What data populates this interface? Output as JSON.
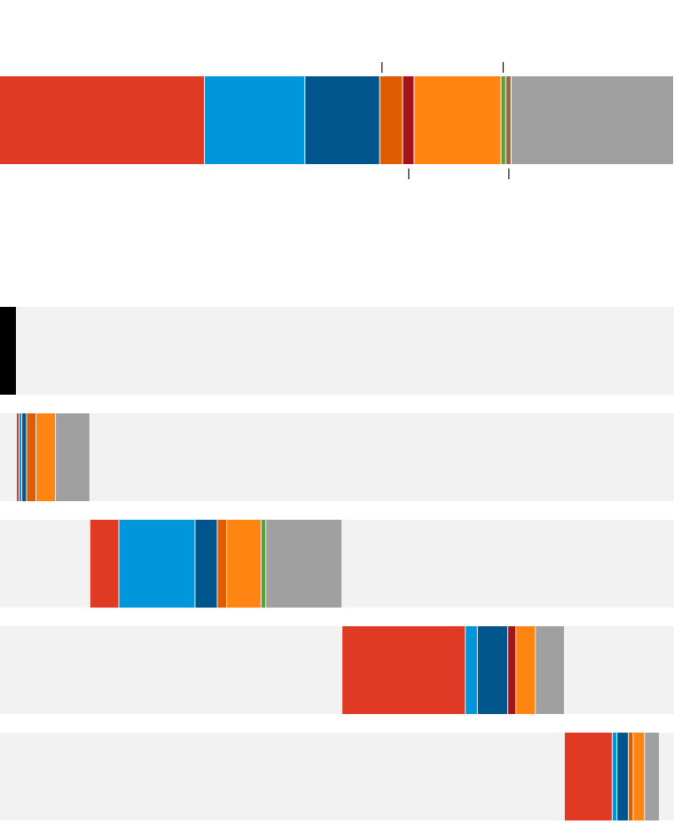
{
  "chart_data": {
    "type": "stacked-bar",
    "xlim": [
      0,
      100
    ],
    "total": {
      "segments": [
        {
          "color": "#e03a25",
          "value": 30.4
        },
        {
          "color": "#0096db",
          "value": 14.9
        },
        {
          "color": "#00568c",
          "value": 11.1
        },
        {
          "color": "#e05c00",
          "value": 3.4
        },
        {
          "color": "#a8121b",
          "value": 1.7
        },
        {
          "color": "#ff8411",
          "value": 12.9
        },
        {
          "color": "#5aa132",
          "value": 0.7
        },
        {
          "color": "#9b6a3c",
          "value": 0.8
        },
        {
          "color": "#a0a0a0",
          "value": 24.1
        }
      ]
    },
    "rows": [
      {
        "segments": [
          {
            "color": "#000000",
            "value": 2.5
          }
        ]
      },
      {
        "segments": [
          {
            "color": "#e03a25",
            "value": 0.4
          },
          {
            "color": "#0096db",
            "value": 0.4
          },
          {
            "color": "#00568c",
            "value": 0.7
          },
          {
            "color": "#e05c00",
            "value": 1.4
          },
          {
            "color": "#ff8411",
            "value": 2.9
          },
          {
            "color": "#a0a0a0",
            "value": 5.1
          }
        ]
      },
      {
        "segments": [
          {
            "color": "#e03a25",
            "value": 4.3
          },
          {
            "color": "#0096db",
            "value": 11.3
          },
          {
            "color": "#00568c",
            "value": 3.3
          },
          {
            "color": "#e05c00",
            "value": 1.4
          },
          {
            "color": "#ff8411",
            "value": 5.1
          },
          {
            "color": "#5aa132",
            "value": 0.7
          },
          {
            "color": "#a0a0a0",
            "value": 11.3
          }
        ]
      },
      {
        "segments": [
          {
            "color": "#e03a25",
            "value": 18.3
          },
          {
            "color": "#0096db",
            "value": 1.8
          },
          {
            "color": "#00568c",
            "value": 4.5
          },
          {
            "color": "#a8121b",
            "value": 1.2
          },
          {
            "color": "#ff8411",
            "value": 2.9
          },
          {
            "color": "#a0a0a0",
            "value": 4.3
          }
        ]
      },
      {
        "segments": [
          {
            "color": "#e03a25",
            "value": 7.1
          },
          {
            "color": "#0096db",
            "value": 0.7
          },
          {
            "color": "#00568c",
            "value": 1.7
          },
          {
            "color": "#e05c00",
            "value": 0.7
          },
          {
            "color": "#ff8411",
            "value": 1.7
          },
          {
            "color": "#a0a0a0",
            "value": 2.2
          }
        ]
      }
    ]
  }
}
